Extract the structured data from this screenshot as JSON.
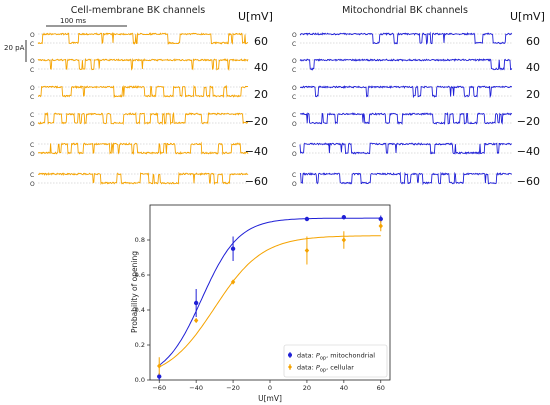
{
  "panels": {
    "left_title": "Cell-membrane BK channels",
    "right_title": "Mitochondrial BK channels",
    "unit_label": "U[mV]",
    "scale_time": "100 ms",
    "scale_current": "20 pA",
    "left_state_labels": [
      [
        "O",
        "C"
      ],
      [
        "O",
        "C"
      ],
      [
        "O",
        "C"
      ],
      [
        "C",
        "O"
      ],
      [
        "C",
        "O"
      ],
      [
        "C",
        "O"
      ]
    ],
    "right_state_labels": [
      [
        "O",
        "C"
      ],
      [
        "O",
        "C"
      ],
      [
        "O",
        "C"
      ],
      [
        "C",
        "O"
      ],
      [
        "C",
        "O"
      ],
      [
        "C",
        "O"
      ]
    ],
    "voltages": [
      "60",
      "40",
      "20",
      "−20",
      "−40",
      "−60"
    ],
    "left_color": "#f5a300",
    "right_color": "#1f1fd6"
  },
  "chart_data": {
    "type": "scatter",
    "xlabel": "U[mV]",
    "ylabel": "Probability of opening",
    "xlim": [
      -65,
      65
    ],
    "ylim": [
      0,
      1.0
    ],
    "xticks": [
      -60,
      -40,
      -20,
      0,
      20,
      40,
      60
    ],
    "yticks": [
      0.0,
      0.2,
      0.4,
      0.6,
      0.8
    ],
    "series": [
      {
        "name": "data: P_op, mitochondrial",
        "legend_prefix": "data: ",
        "legend_main": "P",
        "legend_sub": "op",
        "legend_suffix": ", mitochondrial",
        "color": "#1f1fd6",
        "x": [
          -60,
          -40,
          -20,
          20,
          40,
          60
        ],
        "y": [
          0.02,
          0.44,
          0.75,
          0.92,
          0.93,
          0.92
        ],
        "err": [
          0.02,
          0.08,
          0.07,
          0.01,
          0.01,
          0.02
        ],
        "fit": {
          "top": 0.925,
          "mid": -37,
          "slope": 10
        }
      },
      {
        "name": "data: P_op, cellular",
        "legend_prefix": "data: ",
        "legend_main": "P",
        "legend_sub": "op",
        "legend_suffix": ", cellular",
        "color": "#f5a300",
        "x": [
          -60,
          -40,
          -20,
          20,
          40,
          60
        ],
        "y": [
          0.08,
          0.34,
          0.56,
          0.74,
          0.8,
          0.88
        ],
        "err": [
          0.05,
          0.01,
          0.01,
          0.08,
          0.05,
          0.03
        ],
        "fit": {
          "top": 0.825,
          "mid": -30,
          "slope": 13
        }
      }
    ],
    "legend_position": "lower-right",
    "grid": false
  }
}
